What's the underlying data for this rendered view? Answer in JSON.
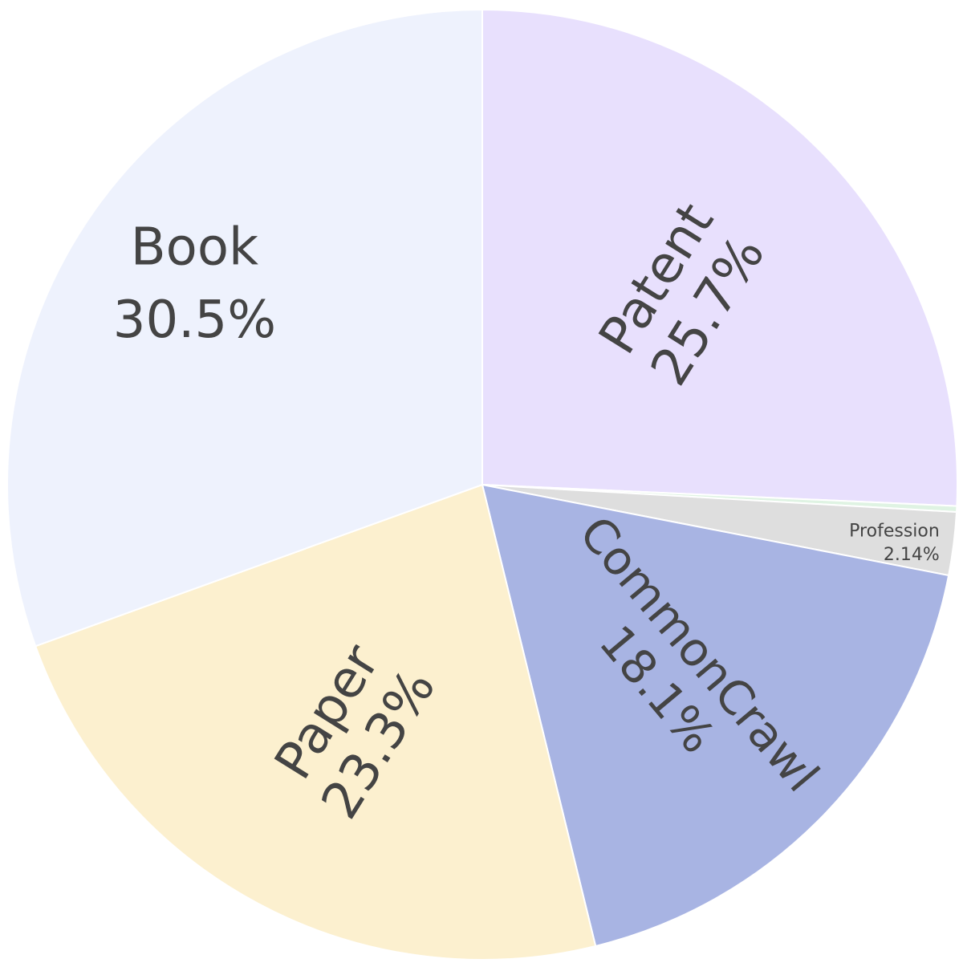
{
  "chart_data": {
    "type": "pie",
    "title": "",
    "slices": [
      {
        "name": "Patent",
        "value": 25.7,
        "text": "25.7%",
        "color": "#e8e0fd"
      },
      {
        "name": "",
        "value": 0.2,
        "text": "",
        "color": "#dff3e3"
      },
      {
        "name": "Profession",
        "value": 2.14,
        "text": "2.14%",
        "color": "#dedede"
      },
      {
        "name": "CommonCrawl",
        "value": 18.1,
        "text": "18.1%",
        "color": "#a8b4e3"
      },
      {
        "name": "Paper",
        "value": 23.3,
        "text": "23.3%",
        "color": "#fcf0cf"
      },
      {
        "name": "Book",
        "value": 30.5,
        "text": "30.5%",
        "color": "#eef2fd"
      }
    ],
    "direction": "clockwise",
    "start": "12 o'clock",
    "text_color": "#444444",
    "legend": "none"
  }
}
